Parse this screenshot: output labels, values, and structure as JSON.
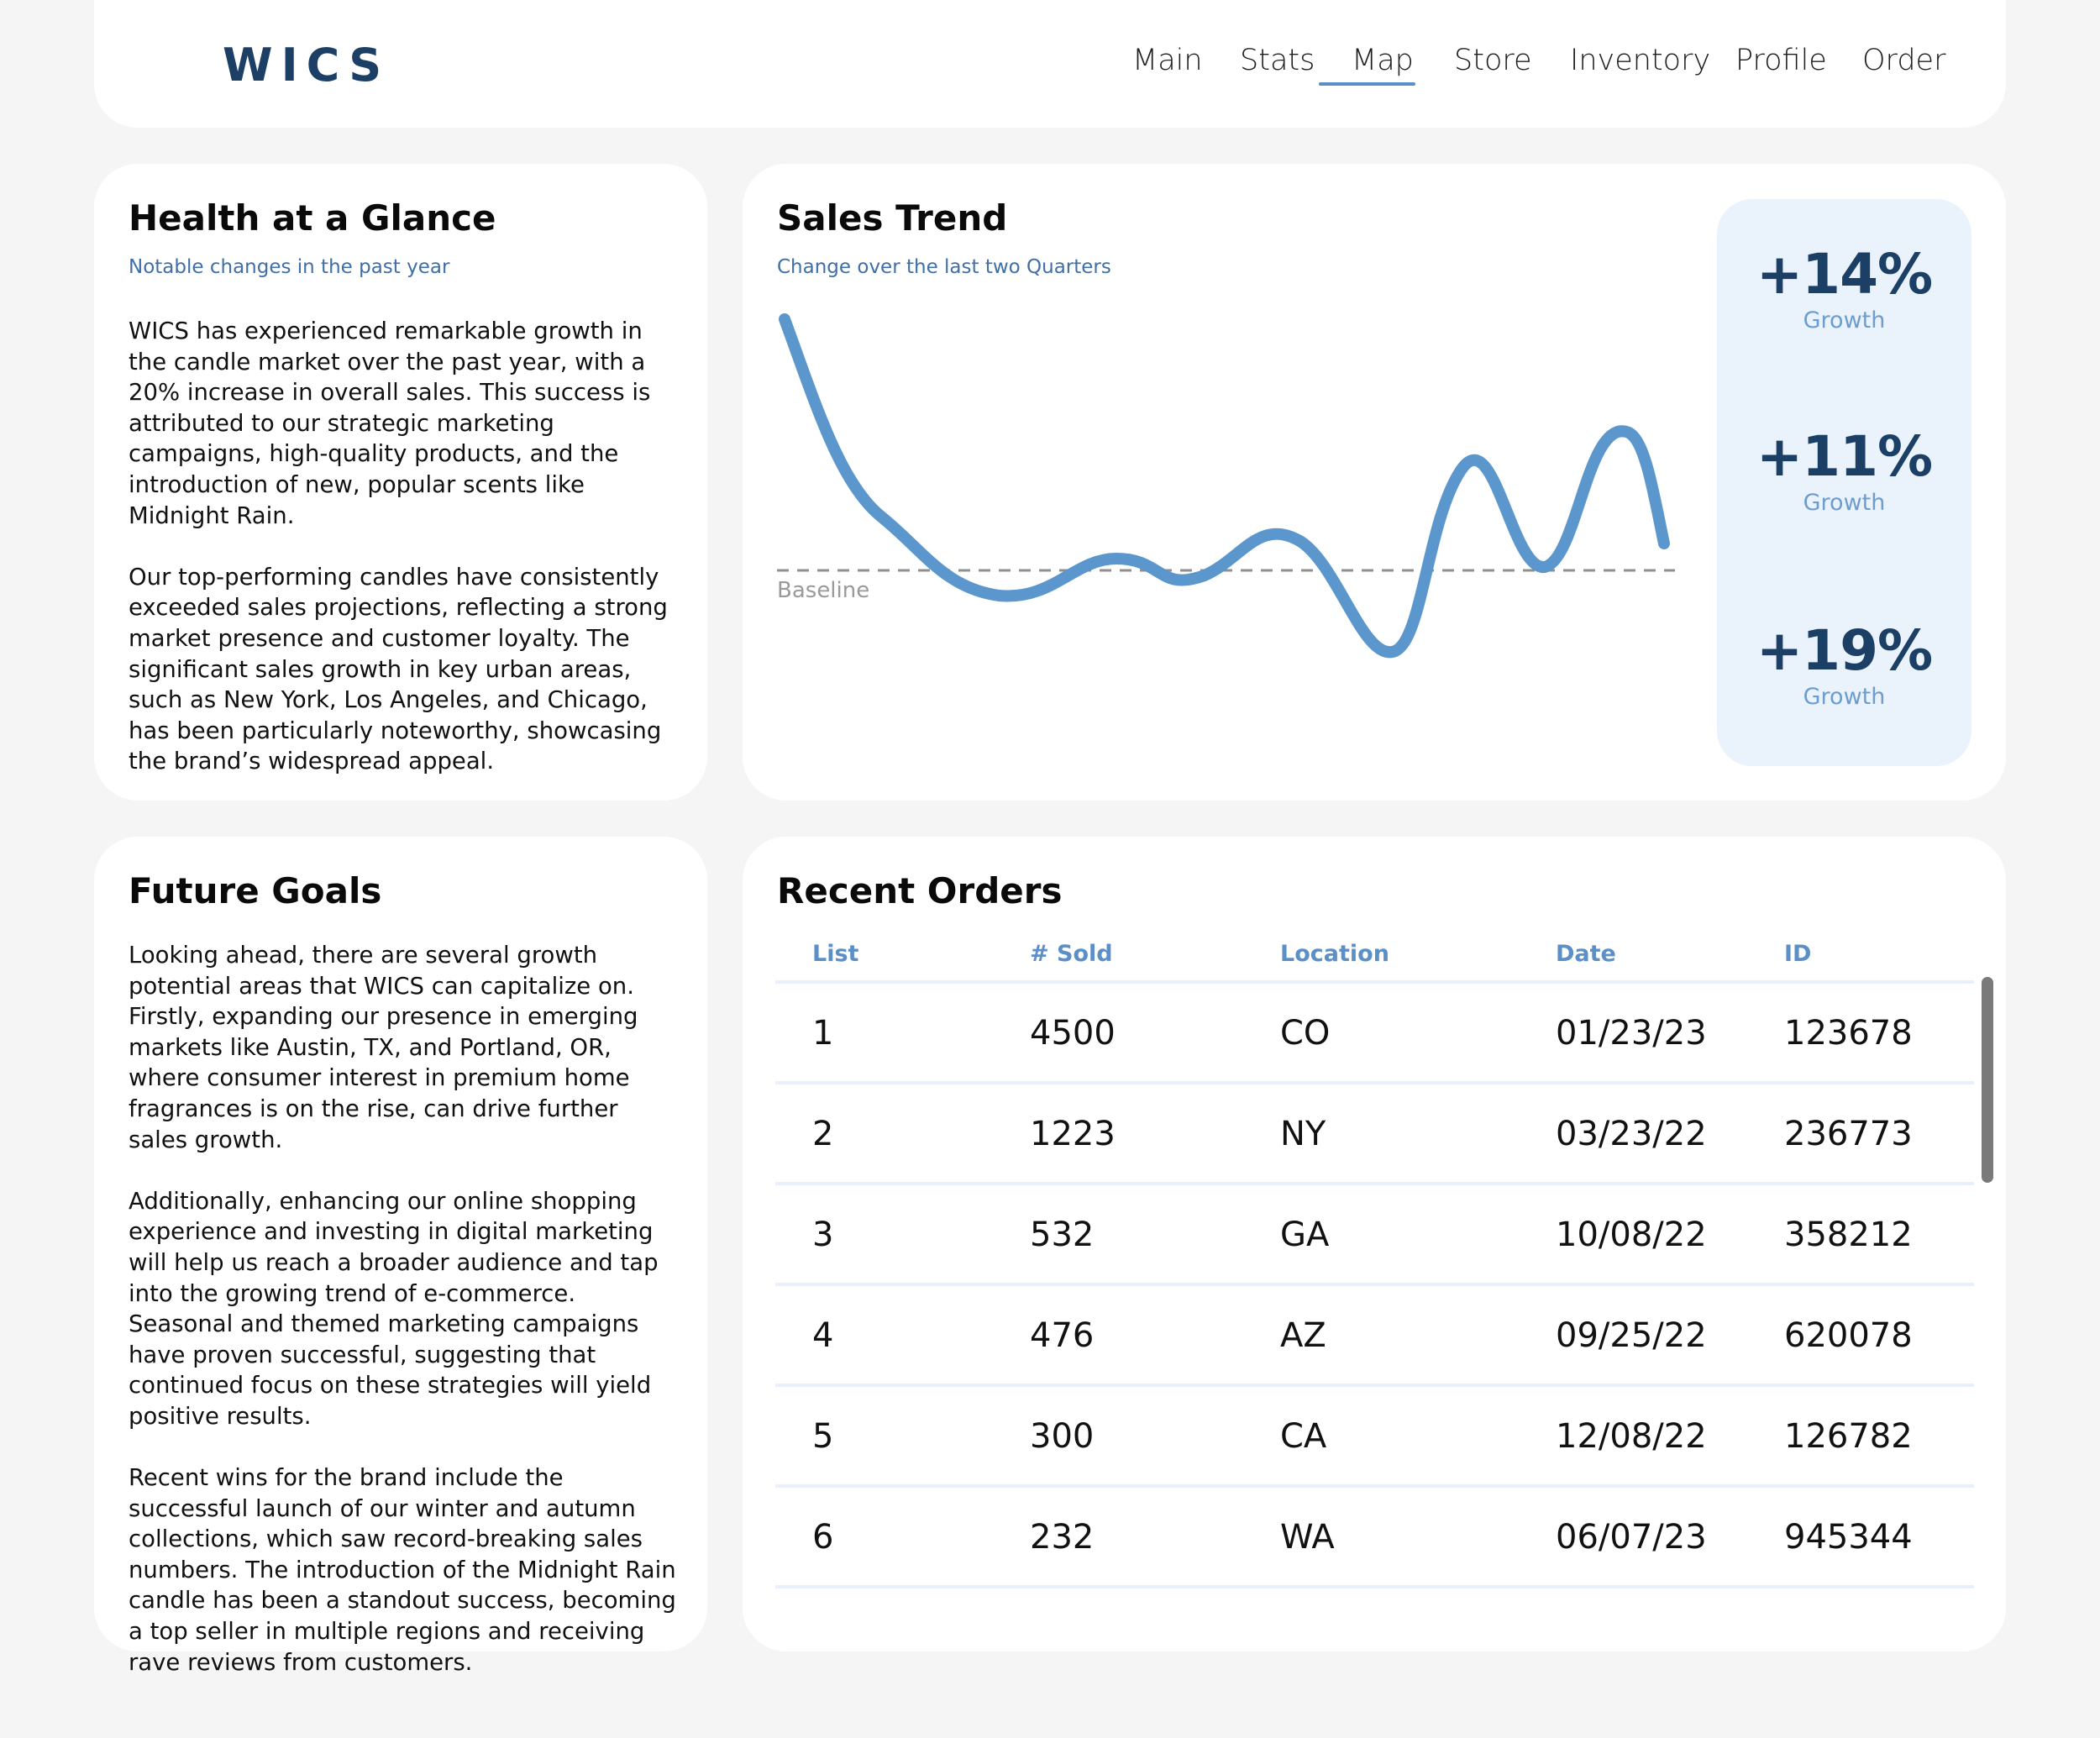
{
  "header": {
    "logo": "WICS",
    "nav": [
      "Main",
      "Stats",
      "Map",
      "Store",
      "Inventory",
      "Profile",
      "Order"
    ],
    "active_nav": "Stats"
  },
  "health": {
    "title": "Health at a Glance",
    "subtitle": "Notable changes in the past year",
    "paragraphs": [
      "WICS has experienced remarkable growth in the candle market over the past year, with a 20% increase in overall sales. This success is attributed to our strategic marketing campaigns, high-quality products, and the introduction of new, popular scents like Midnight Rain.",
      "Our top-performing candles have consistently exceeded sales projections, reflecting a strong market presence and customer loyalty. The significant sales growth in key urban areas, such as New York, Los Angeles, and Chicago, has been particularly noteworthy, showcasing the brand’s widespread appeal."
    ]
  },
  "trend": {
    "title": "Sales Trend",
    "subtitle": "Change over the last two Quarters",
    "baseline_label": "Baseline",
    "line_color": "#5b97cd",
    "growth": [
      {
        "value": "+14%",
        "label": "Growth"
      },
      {
        "value": "+11%",
        "label": "Growth"
      },
      {
        "value": "+19%",
        "label": "Growth"
      }
    ]
  },
  "goals": {
    "title": "Future Goals",
    "paragraphs": [
      "Looking ahead, there are several growth potential areas that WICS can capitalize on. Firstly, expanding our presence in emerging markets like Austin, TX, and Portland, OR, where consumer interest in premium home fragrances is on the rise, can drive further sales growth.",
      "Additionally, enhancing our online shopping experience and investing in digital marketing will help us reach a broader audience and tap into the growing trend of e-commerce. Seasonal and themed marketing campaigns have proven successful, suggesting that continued focus on these strategies will yield positive results.",
      "Recent wins for the brand include the successful launch of our winter and autumn collections, which saw record-breaking sales numbers. The introduction of the Midnight Rain candle has been a standout success, becoming a top seller in multiple regions and receiving rave reviews from customers."
    ]
  },
  "orders": {
    "title": "Recent Orders",
    "columns": [
      "List",
      "# Sold",
      "Location",
      "Date",
      "ID"
    ],
    "rows": [
      [
        "1",
        "4500",
        "CO",
        "01/23/23",
        "123678"
      ],
      [
        "2",
        "1223",
        "NY",
        "03/23/22",
        "236773"
      ],
      [
        "3",
        "532",
        "GA",
        "10/08/22",
        "358212"
      ],
      [
        "4",
        "476",
        "AZ",
        "09/25/22",
        "620078"
      ],
      [
        "5",
        "300",
        "CA",
        "12/08/22",
        "126782"
      ],
      [
        "6",
        "232",
        "WA",
        "06/07/23",
        "945344"
      ]
    ]
  }
}
